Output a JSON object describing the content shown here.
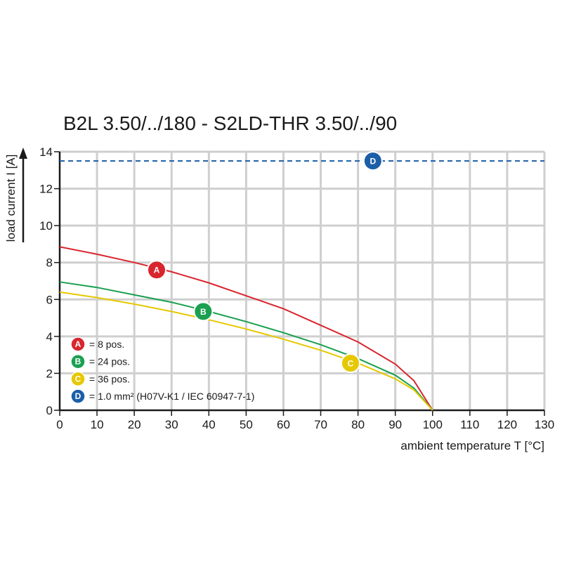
{
  "chart_data": {
    "type": "line",
    "title": "B2L 3.50/../180 - S2LD-THR 3.50/../90",
    "xlabel": "ambient temperature T [°C]",
    "ylabel": "load current I [A]",
    "xlim": [
      0,
      130
    ],
    "ylim": [
      0,
      14
    ],
    "x_ticks": [
      0,
      10,
      20,
      30,
      40,
      50,
      60,
      70,
      80,
      90,
      100,
      110,
      120,
      130
    ],
    "y_ticks": [
      0,
      2,
      4,
      6,
      8,
      10,
      12,
      14
    ],
    "grid": true,
    "legend_position": "bottom-left",
    "series": [
      {
        "id": "A",
        "name": "= 8 pos.",
        "color": "#d9262e",
        "style": "solid",
        "x": [
          0,
          10,
          20,
          30,
          40,
          50,
          60,
          70,
          80,
          90,
          95,
          100
        ],
        "y": [
          8.85,
          8.45,
          8.0,
          7.5,
          6.9,
          6.2,
          5.5,
          4.6,
          3.7,
          2.5,
          1.6,
          0.0
        ],
        "marker": {
          "x": 26,
          "y": 7.6
        }
      },
      {
        "id": "B",
        "name": "= 24 pos.",
        "color": "#1aa050",
        "style": "solid",
        "x": [
          0,
          10,
          20,
          30,
          40,
          50,
          60,
          70,
          80,
          90,
          95,
          100
        ],
        "y": [
          6.95,
          6.65,
          6.25,
          5.85,
          5.35,
          4.8,
          4.2,
          3.55,
          2.8,
          1.9,
          1.2,
          0.0
        ],
        "marker": {
          "x": 38.5,
          "y": 5.35
        }
      },
      {
        "id": "C",
        "name": "= 36 pos.",
        "color": "#e6c800",
        "style": "solid",
        "x": [
          0,
          10,
          20,
          30,
          40,
          50,
          60,
          70,
          80,
          90,
          95,
          100
        ],
        "y": [
          6.4,
          6.1,
          5.75,
          5.35,
          4.9,
          4.4,
          3.85,
          3.25,
          2.55,
          1.7,
          1.1,
          0.0
        ],
        "marker": {
          "x": 78,
          "y": 2.55
        }
      },
      {
        "id": "D",
        "name": "= 1.0 mm² (H07V-K1 / IEC 60947-7-1)",
        "color": "#1c5ea8",
        "style": "dashed",
        "x": [
          0,
          130
        ],
        "y": [
          13.5,
          13.5
        ],
        "marker": {
          "x": 84,
          "y": 13.5
        }
      }
    ]
  }
}
